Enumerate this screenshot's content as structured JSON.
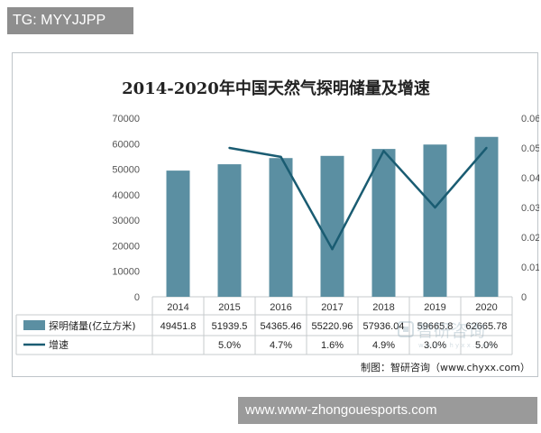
{
  "tag_label": "TG: MYYJJPP",
  "banner_text": "www.www-zhongouesports.com",
  "watermark": {
    "text_cn": "智研咨询",
    "text_en": "w w w . c h y x x . c o m"
  },
  "source_note": "制图：智研咨询（www.chyxx.com）",
  "colors": {
    "bar": "#5b8fa2",
    "line": "#1a5c72",
    "axis_text": "#555555",
    "grid": "#c7cbcd"
  },
  "chart_data": {
    "type": "bar",
    "title": "2014-2020年中国天然气探明储量及增速",
    "categories": [
      "2014",
      "2015",
      "2016",
      "2017",
      "2018",
      "2019",
      "2020"
    ],
    "series": [
      {
        "name": "探明储量(亿立方米)",
        "type": "bar",
        "axis": "left",
        "values": [
          49451.8,
          51939.5,
          54365.46,
          55220.96,
          57936.04,
          59665.8,
          62665.78
        ],
        "labels": [
          "49451.8",
          "51939.5",
          "54365.46",
          "55220.96",
          "57936.04",
          "59665.8",
          "62665.78"
        ]
      },
      {
        "name": "增速",
        "type": "line",
        "axis": "right",
        "values": [
          null,
          0.05,
          0.047,
          0.016,
          0.049,
          0.03,
          0.05
        ],
        "labels": [
          "",
          "5.0%",
          "4.7%",
          "1.6%",
          "4.9%",
          "3.0%",
          "5.0%"
        ]
      }
    ],
    "y_left": {
      "range": [
        0,
        70000
      ],
      "ticks": [
        "0",
        "10000",
        "20000",
        "30000",
        "40000",
        "50000",
        "60000",
        "70000"
      ]
    },
    "y_right": {
      "range": [
        0,
        0.06
      ],
      "ticks": [
        "0",
        "0.01",
        "0.02",
        "0.03",
        "0.04",
        "0.05",
        "0.06"
      ]
    },
    "grid": false,
    "legend": "data-table"
  }
}
